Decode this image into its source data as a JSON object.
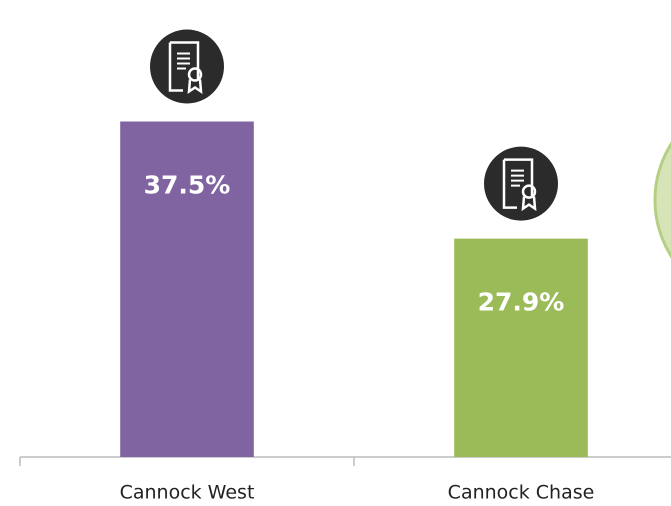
{
  "chart_data": {
    "type": "bar",
    "categories": [
      "Cannock West",
      "Cannock Chase"
    ],
    "values": [
      37.5,
      27.9
    ],
    "value_labels": [
      "37.5%",
      "27.9%"
    ],
    "colors": [
      "#8064a2",
      "#9bbb59"
    ],
    "ylim": [
      10,
      40
    ]
  }
}
